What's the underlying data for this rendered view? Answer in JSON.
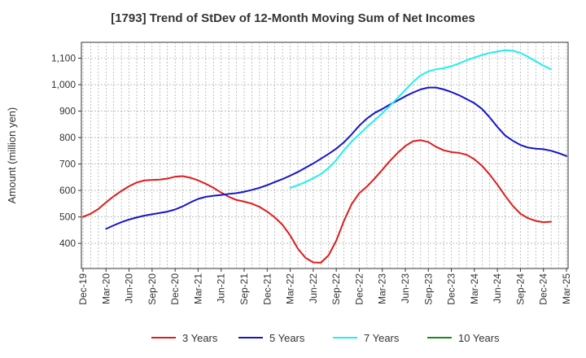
{
  "chart_data": {
    "type": "line",
    "title": "[1793]  Trend of StDev of 12-Month Moving Sum of Net Incomes",
    "xlabel": "",
    "ylabel": "Amount (million yen)",
    "ylim": [
      305,
      1160
    ],
    "yticks": [
      400,
      500,
      600,
      700,
      800,
      900,
      1000,
      1100
    ],
    "ytick_labels": [
      "400",
      "500",
      "600",
      "700",
      "800",
      "900",
      "1,000",
      "1,100"
    ],
    "xticks": [
      "Dec-19",
      "Mar-20",
      "Jun-20",
      "Sep-20",
      "Dec-20",
      "Mar-21",
      "Jun-21",
      "Sep-21",
      "Dec-21",
      "Mar-22",
      "Jun-22",
      "Sep-22",
      "Dec-22",
      "Mar-23",
      "Jun-23",
      "Sep-23",
      "Dec-23",
      "Mar-24",
      "Jun-24",
      "Sep-24",
      "Dec-24",
      "Mar-25"
    ],
    "grid": true,
    "legend_position": "bottom",
    "series": [
      {
        "name": "3 Years",
        "color": "#dd1c1c",
        "start": "Dec-19",
        "values": [
          500,
          512,
          530,
          555,
          578,
          598,
          616,
          630,
          638,
          640,
          641,
          645,
          652,
          654,
          648,
          638,
          625,
          610,
          592,
          576,
          564,
          558,
          550,
          538,
          520,
          498,
          470,
          430,
          380,
          345,
          328,
          327,
          355,
          410,
          485,
          548,
          590,
          615,
          645,
          678,
          712,
          742,
          768,
          786,
          790,
          783,
          765,
          752,
          745,
          742,
          735,
          718,
          693,
          660,
          622,
          580,
          542,
          512,
          495,
          485,
          480,
          482
        ]
      },
      {
        "name": "5 Years",
        "color": "#1515cc",
        "start": "Mar-20",
        "values": [
          455,
          468,
          480,
          490,
          498,
          505,
          510,
          515,
          520,
          528,
          540,
          555,
          568,
          576,
          580,
          583,
          587,
          590,
          595,
          602,
          610,
          620,
          632,
          643,
          656,
          670,
          686,
          702,
          720,
          738,
          758,
          782,
          812,
          845,
          872,
          893,
          908,
          925,
          940,
          956,
          970,
          982,
          989,
          989,
          982,
          972,
          960,
          945,
          930,
          908,
          876,
          840,
          808,
          788,
          772,
          762,
          758,
          756,
          750,
          741,
          730
        ]
      },
      {
        "name": "7 Years",
        "color": "#22eeee",
        "start": "Mar-22",
        "values": [
          610,
          620,
          632,
          646,
          662,
          685,
          715,
          752,
          785,
          812,
          840,
          866,
          892,
          920,
          950,
          980,
          1010,
          1035,
          1050,
          1058,
          1062,
          1070,
          1080,
          1092,
          1102,
          1112,
          1120,
          1125,
          1130,
          1128,
          1120,
          1105,
          1088,
          1072,
          1058
        ]
      },
      {
        "name": "10 Years",
        "color": "#1a8a1a",
        "start": "Mar-25",
        "values": []
      }
    ]
  }
}
